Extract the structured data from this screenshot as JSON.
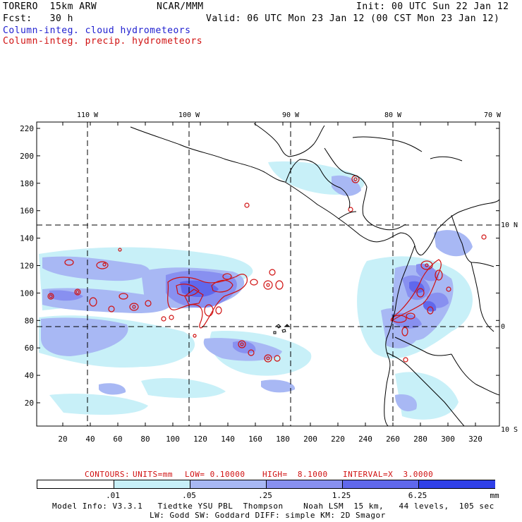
{
  "header": {
    "model_left": "TORERO  15km ARW",
    "org": "NCAR/MMM",
    "init": "Init: 00 UTC Sun 22 Jan 12",
    "fcst": "Fcst:   30 h",
    "valid": "Valid: 06 UTC Mon 23 Jan 12 (00 CST Mon 23 Jan 12)",
    "field1": "Column-integ. cloud hydrometeors",
    "field2": "Column-integ. precip. hydrometeors"
  },
  "axes": {
    "top_lon_labels": [
      "110 W",
      "100 W",
      "90 W",
      "80 W",
      "70 W"
    ],
    "right_lat_labels": [
      "10 N",
      "0",
      "10 S"
    ],
    "y_ticks": [
      "220",
      "200",
      "180",
      "160",
      "140",
      "120",
      "100",
      "80",
      "60",
      "40",
      "20"
    ],
    "x_ticks": [
      "20",
      "40",
      "60",
      "80",
      "100",
      "120",
      "140",
      "160",
      "180",
      "200",
      "220",
      "240",
      "260",
      "280",
      "300",
      "320"
    ]
  },
  "contour_info": {
    "label": "CONTOURS:",
    "units": "UNITS=mm",
    "low": "LOW= 0.10000",
    "high": "HIGH=  8.1000",
    "interval": "INTERVAL=X  3.0000"
  },
  "colorbar": {
    "colors": [
      "#ffffff",
      "#c8f0f8",
      "#a8b8f4",
      "#8890f0",
      "#6068ec",
      "#3040e8",
      "#1018e0"
    ],
    "labels": [
      ".01",
      ".05",
      ".25",
      "1.25",
      "6.25"
    ],
    "unit": "mm"
  },
  "footer": {
    "line1": "Model Info: V3.3.1   Tiedtke YSU PBL  Thompson    Noah LSM  15 km,   44 levels,  105 sec",
    "line2": "LW: Godd SW: Goddard DIFF: simple KM: 2D Smagor"
  }
}
